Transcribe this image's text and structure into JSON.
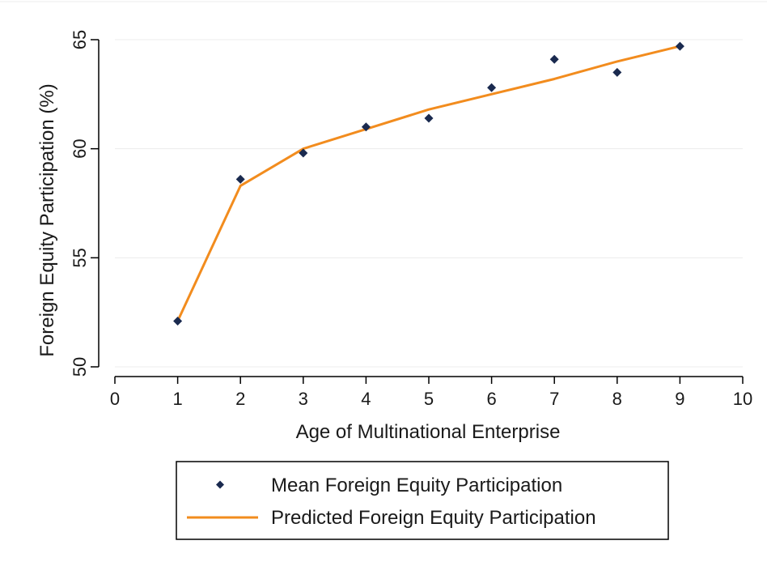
{
  "chart_data": {
    "type": "line",
    "title": "",
    "xlabel": "Age of Multinational Enterprise",
    "ylabel": "Foreign Equity Participation (%)",
    "xlim": [
      0,
      10
    ],
    "ylim": [
      50,
      65
    ],
    "xticks": [
      "0",
      "1",
      "2",
      "3",
      "4",
      "5",
      "6",
      "7",
      "8",
      "9",
      "10"
    ],
    "yticks": [
      "50",
      "55",
      "60",
      "65"
    ],
    "grid": "horizontal",
    "legend_position": "bottom",
    "series": [
      {
        "name": "Mean Foreign Equity Participation",
        "kind": "scatter",
        "marker": "diamond",
        "color": "#1a2a4f",
        "x": [
          1,
          2,
          3,
          4,
          5,
          6,
          7,
          8,
          9
        ],
        "y": [
          52.1,
          58.6,
          59.8,
          61.0,
          61.4,
          62.8,
          64.1,
          63.5,
          64.7
        ]
      },
      {
        "name": "Predicted Foreign Equity Participation",
        "kind": "line",
        "color": "#f28c1e",
        "x": [
          1,
          2,
          3,
          4,
          5,
          6,
          7,
          8,
          9
        ],
        "y": [
          52.1,
          58.3,
          60.0,
          60.9,
          61.8,
          62.5,
          63.2,
          64.0,
          64.7
        ]
      }
    ]
  }
}
